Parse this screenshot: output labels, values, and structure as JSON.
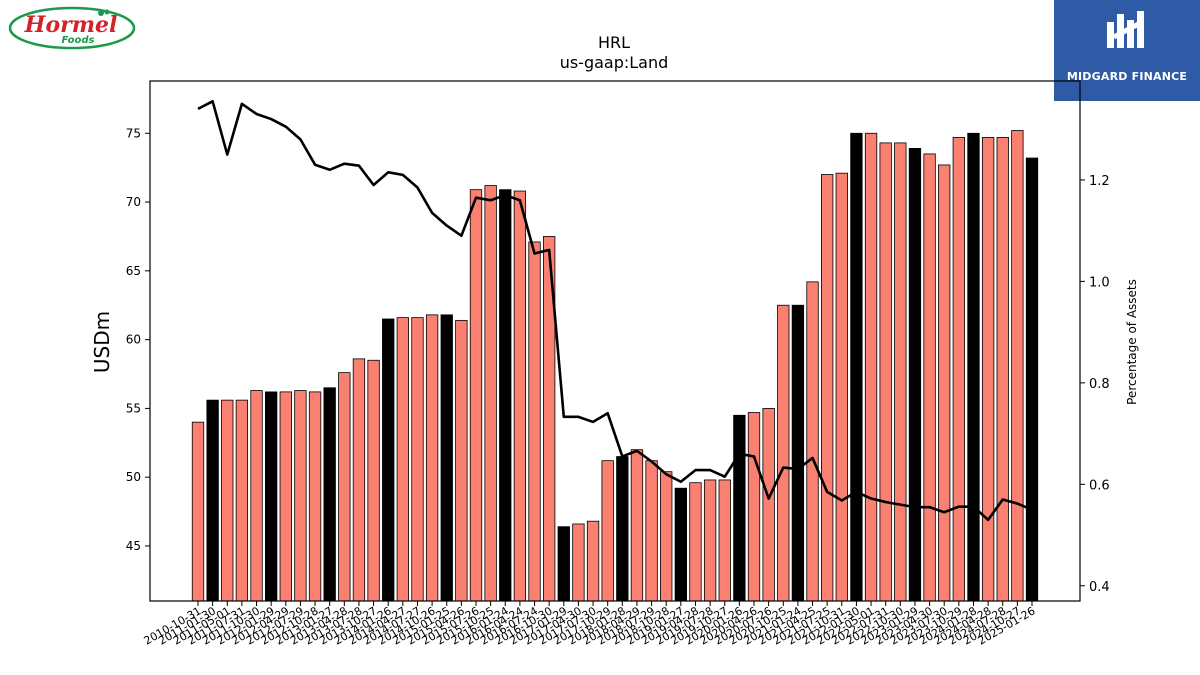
{
  "logos": {
    "left_name": "Hormel Foods",
    "right_name": "MIDGARD FINANCE"
  },
  "chart_data": {
    "type": "bar",
    "title": "HRL",
    "subtitle": "us-gaap:Land",
    "ylabel": "USDm",
    "y2label": "Percentage of Assets",
    "ylim": [
      41,
      78.8
    ],
    "y2lim": [
      0.37,
      1.395
    ],
    "yticks": [
      45,
      50,
      55,
      60,
      65,
      70,
      75
    ],
    "y2ticks": [
      0.4,
      0.6,
      0.8,
      1.0,
      1.2
    ],
    "y2tick_labels": [
      "0.4",
      "0.6",
      "0.8",
      "1.0",
      "1.2"
    ],
    "colors": {
      "quarter": "#fa8072",
      "annual": "#000000",
      "line": "#000000",
      "bar_edge": "#000000"
    },
    "categories": [
      "2010-10-31",
      "2011-01-30",
      "2011-05-01",
      "2011-07-31",
      "2011-10-30",
      "2012-01-29",
      "2012-04-29",
      "2012-07-29",
      "2012-10-28",
      "2013-01-27",
      "2013-04-28",
      "2013-07-28",
      "2013-10-27",
      "2014-01-26",
      "2014-04-27",
      "2014-07-27",
      "2014-10-26",
      "2015-01-25",
      "2015-04-26",
      "2015-07-26",
      "2015-10-25",
      "2016-01-24",
      "2016-04-24",
      "2016-07-24",
      "2016-10-30",
      "2017-01-29",
      "2017-04-30",
      "2017-07-30",
      "2017-10-29",
      "2018-01-28",
      "2018-04-29",
      "2018-07-29",
      "2018-10-28",
      "2019-01-27",
      "2019-04-28",
      "2019-07-28",
      "2019-10-27",
      "2020-01-26",
      "2020-04-26",
      "2020-07-26",
      "2020-10-25",
      "2021-01-24",
      "2021-04-25",
      "2021-07-25",
      "2021-10-31",
      "2022-01-30",
      "2022-05-01",
      "2022-07-31",
      "2022-10-30",
      "2023-01-29",
      "2023-04-30",
      "2023-07-30",
      "2023-10-29",
      "2024-01-28",
      "2024-04-28",
      "2024-07-28",
      "2024-10-27",
      "2025-01-26"
    ],
    "xtick_labels": [
      "2010-10-31",
      "2011-01-30",
      "2011-05-01",
      "2011-07-31",
      "2011-10-30",
      "2012-01-29",
      "2012-04-29",
      "2012-07-29",
      "2012-10-28",
      "2013-01-27",
      "2013-04-28",
      "2013-07-28",
      "2013-10-27",
      "2014-01-26",
      "2014-04-27",
      "2014-07-27",
      "2014-10-26",
      "2015-01-25",
      "2015-04-26",
      "2015-07-26",
      "2015-10-25",
      "2016-01-24",
      "2016-04-24",
      "2016-07-24",
      "2016-10-30",
      "2017-01-29",
      "2017-04-30",
      "2017-07-30",
      "2017-10-29",
      "2018-01-28",
      "2018-04-29",
      "2018-07-29",
      "2018-10-28",
      "2019-01-27",
      "2019-04-28",
      "2019-07-28",
      "2019-10-27",
      "2020-01-26",
      "2020-04-26",
      "2020-07-26",
      "2020-10-25",
      "2021-01-24",
      "2021-04-25",
      "2021-07-25",
      "2021-10-31",
      "2022-01-30",
      "2022-05-01",
      "2022-07-31",
      "2022-10-30",
      "2023-01-29",
      "2023-04-30",
      "2023-07-30",
      "2023-10-29",
      "2024-01-28",
      "2024-04-28",
      "2024-07-28",
      "2024-10-27",
      "2025-01-26"
    ],
    "bar_types": [
      "q",
      "a",
      "q",
      "q",
      "q",
      "a",
      "q",
      "q",
      "q",
      "a",
      "q",
      "q",
      "q",
      "a",
      "q",
      "q",
      "q",
      "a",
      "q",
      "q",
      "q",
      "a",
      "q",
      "q",
      "q",
      "a",
      "q",
      "q",
      "q",
      "a",
      "q",
      "q",
      "q",
      "a",
      "q",
      "q",
      "q",
      "a",
      "q",
      "q",
      "q",
      "a",
      "q",
      "q",
      "q",
      "a",
      "q",
      "q",
      "q",
      "a",
      "q",
      "q",
      "q",
      "a",
      "q",
      "q",
      "q",
      "a"
    ],
    "series": [
      {
        "type": "bar",
        "values": [
          54.0,
          55.6,
          55.6,
          55.6,
          56.3,
          56.2,
          56.2,
          56.3,
          56.2,
          56.5,
          57.6,
          58.6,
          58.5,
          61.5,
          61.6,
          61.6,
          61.8,
          61.8,
          61.4,
          70.9,
          71.2,
          70.9,
          70.8,
          67.1,
          67.5,
          46.4,
          46.6,
          46.8,
          51.2,
          51.5,
          52.0,
          51.2,
          50.4,
          49.2,
          49.6,
          49.8,
          49.8,
          54.5,
          54.7,
          55.0,
          62.5,
          62.5,
          64.2,
          72.0,
          72.1,
          75.0,
          75.0,
          74.3,
          74.3,
          73.9,
          73.5,
          72.7,
          74.7,
          75.0,
          74.7,
          74.7,
          75.2,
          73.2
        ]
      },
      {
        "type": "line",
        "axis": "right",
        "values": [
          1.34,
          1.355,
          1.25,
          1.35,
          1.33,
          1.32,
          1.305,
          1.28,
          1.23,
          1.22,
          1.232,
          1.228,
          1.19,
          1.215,
          1.21,
          1.185,
          1.135,
          1.11,
          1.09,
          1.165,
          1.16,
          1.17,
          1.16,
          1.055,
          1.062,
          0.733,
          0.733,
          0.723,
          0.74,
          0.655,
          0.666,
          0.645,
          0.62,
          0.605,
          0.628,
          0.628,
          0.615,
          0.66,
          0.655,
          0.572,
          0.633,
          0.63,
          0.652,
          0.585,
          0.568,
          0.585,
          0.572,
          0.565,
          0.56,
          0.555,
          0.555,
          0.545,
          0.556,
          0.556,
          0.53,
          0.57,
          0.562,
          0.55
        ]
      }
    ]
  }
}
